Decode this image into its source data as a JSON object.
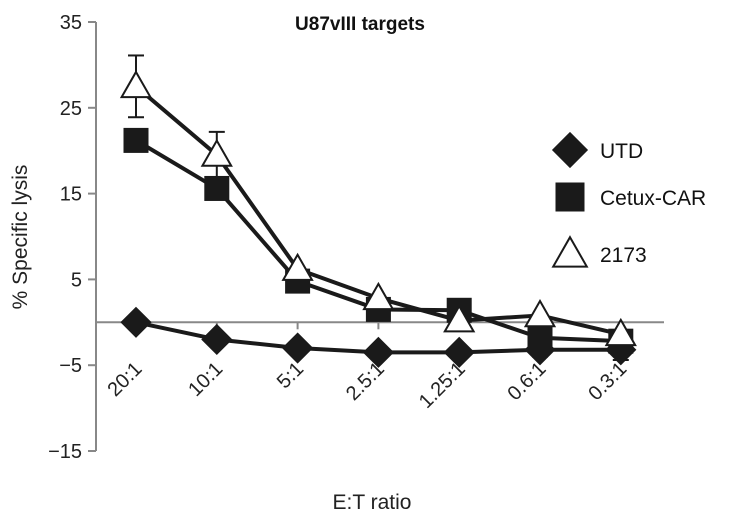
{
  "chart_data": {
    "type": "line",
    "title": "U87vIII targets",
    "xlabel": "E:T ratio",
    "ylabel": "% Specific lysis",
    "categories": [
      "20:1",
      "10:1",
      "5:1",
      "2.5:1",
      "1.25:1",
      "0.6:1",
      "0.3:1"
    ],
    "ylim": [
      -15,
      35
    ],
    "yticks": [
      35,
      25,
      15,
      5,
      -5,
      -15
    ],
    "ytick_labels": [
      "35",
      "25",
      "15",
      "5",
      "−5",
      "−15"
    ],
    "grid": false,
    "legend_position": "right",
    "series": [
      {
        "name": "UTD",
        "marker": "diamond",
        "values": [
          0,
          -2,
          -3,
          -3.5,
          -3.5,
          -3.2,
          -3.2
        ],
        "errors": [
          0,
          0,
          0,
          0,
          0,
          0.8,
          1.2
        ]
      },
      {
        "name": "Cetux-CAR",
        "marker": "square",
        "values": [
          21.2,
          15.6,
          4.8,
          1.5,
          1.4,
          -1.8,
          -2.2
        ],
        "errors": [
          0,
          0,
          0,
          0,
          0,
          0,
          0
        ]
      },
      {
        "name": "2173",
        "marker": "triangle",
        "values": [
          27.5,
          19.5,
          6.2,
          2.8,
          0.2,
          0.8,
          -1.4
        ],
        "errors": [
          3.6,
          2.7,
          0,
          0,
          0,
          0,
          0
        ]
      }
    ]
  },
  "colors": {
    "line": "#1a1a1a",
    "axis": "#888888",
    "marker_fill_dark": "#1a1a1a",
    "marker_fill_open": "#ffffff"
  }
}
